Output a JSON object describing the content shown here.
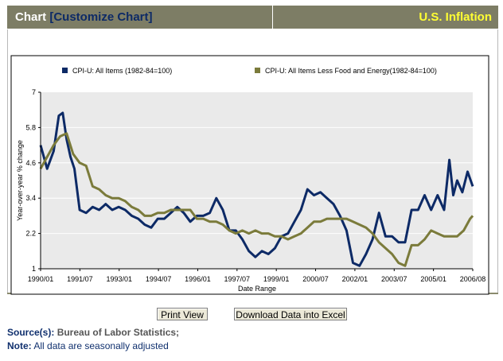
{
  "header": {
    "chart_label": "Chart",
    "customize_link": "[Customize Chart]",
    "series_title": "U.S. Inflation"
  },
  "buttons": {
    "print": "Print View",
    "excel": "Download Data into Excel"
  },
  "footer": {
    "source_label": "Source(s):",
    "source_value": "Bureau of Labor Statistics;",
    "note_label": "Note:",
    "note_value": "All data are seasonally adjusted"
  },
  "colors": {
    "header_bg": "#7d7d65",
    "title_yellow": "#ffff33",
    "series_all": "#0d2a66",
    "series_core": "#7b7b3b",
    "plot_bg": "#eaeaea"
  },
  "chart_data": {
    "type": "line",
    "xlabel": "Date Range",
    "ylabel": "Year-over-year % change",
    "ylim": [
      1,
      7
    ],
    "yticks": [
      "1",
      "2.2",
      "3.4",
      "4.6",
      "5.8",
      "7"
    ],
    "xticks": [
      "1990/01",
      "1991/07",
      "1993/01",
      "1994/07",
      "1996/01",
      "1997/07",
      "1999/01",
      "2000/07",
      "2002/01",
      "2003/07",
      "2005/01",
      "2006/08"
    ],
    "xlim": [
      1990.0,
      2006.6
    ],
    "grid": "horizontal",
    "legend_position": "top",
    "series": [
      {
        "name": "CPI-U: All Items (1982-84=100)",
        "color": "#0d2a66",
        "x": [
          1990.0,
          1990.25,
          1990.5,
          1990.7,
          1990.85,
          1991.0,
          1991.15,
          1991.3,
          1991.5,
          1991.75,
          1992.0,
          1992.25,
          1992.5,
          1992.75,
          1993.0,
          1993.25,
          1993.5,
          1993.75,
          1994.0,
          1994.25,
          1994.5,
          1994.75,
          1995.0,
          1995.25,
          1995.5,
          1995.75,
          1996.0,
          1996.25,
          1996.5,
          1996.75,
          1997.0,
          1997.25,
          1997.5,
          1997.75,
          1998.0,
          1998.25,
          1998.5,
          1998.75,
          1999.0,
          1999.25,
          1999.5,
          1999.75,
          2000.0,
          2000.25,
          2000.5,
          2000.75,
          2001.0,
          2001.25,
          2001.5,
          2001.75,
          2002.0,
          2002.25,
          2002.5,
          2002.75,
          2003.0,
          2003.25,
          2003.5,
          2003.75,
          2004.0,
          2004.25,
          2004.5,
          2004.75,
          2005.0,
          2005.25,
          2005.5,
          2005.7,
          2005.85,
          2006.0,
          2006.2,
          2006.4,
          2006.6
        ],
        "values": [
          5.2,
          4.4,
          5.0,
          6.2,
          6.3,
          5.4,
          4.8,
          4.4,
          3.0,
          2.9,
          3.1,
          3.0,
          3.2,
          3.0,
          3.1,
          3.0,
          2.8,
          2.7,
          2.5,
          2.4,
          2.7,
          2.7,
          2.9,
          3.1,
          2.9,
          2.6,
          2.8,
          2.8,
          2.9,
          3.4,
          3.0,
          2.3,
          2.3,
          2.0,
          1.6,
          1.4,
          1.6,
          1.5,
          1.7,
          2.1,
          2.2,
          2.6,
          3.0,
          3.7,
          3.5,
          3.6,
          3.4,
          3.2,
          2.8,
          2.3,
          1.2,
          1.1,
          1.5,
          2.0,
          2.9,
          2.1,
          2.1,
          1.9,
          1.9,
          3.0,
          3.0,
          3.5,
          3.0,
          3.5,
          3.0,
          4.7,
          3.5,
          4.0,
          3.6,
          4.3,
          3.8
        ]
      },
      {
        "name": "CPI-U: All Items Less Food and Energy(1982-84=100)",
        "color": "#7b7b3b",
        "x": [
          1990.0,
          1990.25,
          1990.5,
          1990.75,
          1991.0,
          1991.25,
          1991.5,
          1991.75,
          1992.0,
          1992.25,
          1992.5,
          1992.75,
          1993.0,
          1993.25,
          1993.5,
          1993.75,
          1994.0,
          1994.25,
          1994.5,
          1994.75,
          1995.0,
          1995.25,
          1995.5,
          1995.75,
          1996.0,
          1996.25,
          1996.5,
          1996.75,
          1997.0,
          1997.25,
          1997.5,
          1997.75,
          1998.0,
          1998.25,
          1998.5,
          1998.75,
          1999.0,
          1999.25,
          1999.5,
          1999.75,
          2000.0,
          2000.25,
          2000.5,
          2000.75,
          2001.0,
          2001.25,
          2001.5,
          2001.75,
          2002.0,
          2002.25,
          2002.5,
          2002.75,
          2003.0,
          2003.25,
          2003.5,
          2003.75,
          2004.0,
          2004.25,
          2004.5,
          2004.75,
          2005.0,
          2005.25,
          2005.5,
          2005.75,
          2006.0,
          2006.25,
          2006.5,
          2006.6
        ],
        "values": [
          4.4,
          4.8,
          5.2,
          5.5,
          5.6,
          4.9,
          4.6,
          4.5,
          3.8,
          3.7,
          3.5,
          3.4,
          3.4,
          3.3,
          3.1,
          3.0,
          2.8,
          2.8,
          2.9,
          2.9,
          3.0,
          3.0,
          3.0,
          3.0,
          2.7,
          2.7,
          2.6,
          2.6,
          2.5,
          2.3,
          2.2,
          2.3,
          2.2,
          2.3,
          2.2,
          2.2,
          2.1,
          2.1,
          2.0,
          2.1,
          2.2,
          2.4,
          2.6,
          2.6,
          2.7,
          2.7,
          2.7,
          2.7,
          2.6,
          2.5,
          2.4,
          2.2,
          1.9,
          1.7,
          1.5,
          1.2,
          1.1,
          1.8,
          1.8,
          2.0,
          2.3,
          2.2,
          2.1,
          2.1,
          2.1,
          2.3,
          2.7,
          2.8
        ]
      }
    ]
  }
}
